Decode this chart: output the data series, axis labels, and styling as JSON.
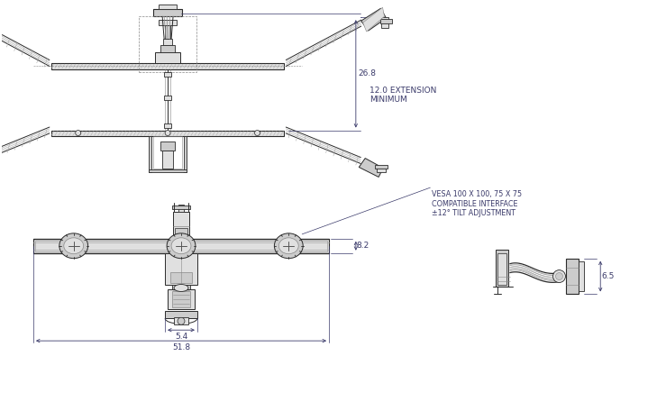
{
  "bg_color": "#ffffff",
  "line_color": "#2a2a2a",
  "dim_color": "#3a3a6a",
  "gray1": "#cccccc",
  "gray2": "#e0e0e0",
  "gray3": "#aaaaaa",
  "gray4": "#888888",
  "gray5": "#555555",
  "dim_26_8": "26.8",
  "dim_12_0": "12.0 EXTENSION\nMINIMUM",
  "dim_8_2": "8.2",
  "dim_5_4": "5.4",
  "dim_51_8": "51.8",
  "dim_6_5": "6.5",
  "vesa_note": "VESA 100 X 100, 75 X 75\nCOMPATIBLE INTERFACE\n±12° TILT ADJUSTMENT",
  "font_size_dim": 6.5,
  "font_size_note": 5.8
}
